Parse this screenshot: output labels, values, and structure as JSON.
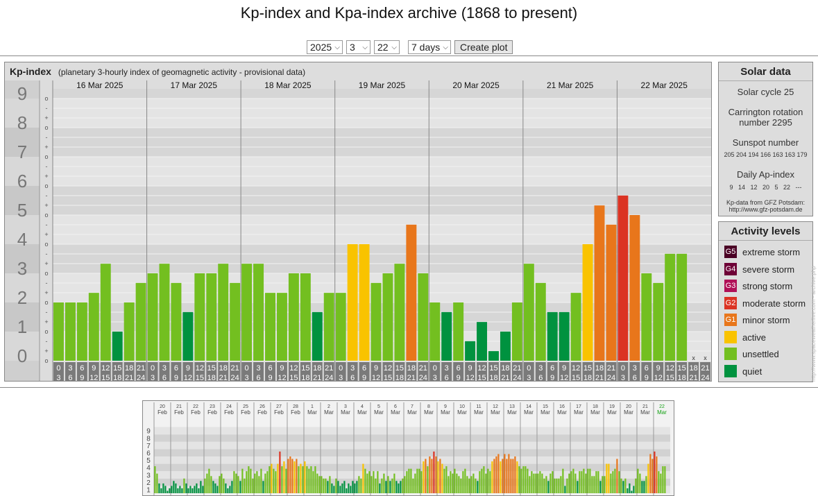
{
  "page_title": "Kp-index and Kpa-index archive (1868 to present)",
  "controls": {
    "year": "2025",
    "month": "3",
    "day": "22",
    "range": "7 days",
    "create_label": "Create plot"
  },
  "panel": {
    "name": "Kp-index",
    "subtitle": "(planetary 3-hourly index of geomagnetic activity - provisional data)"
  },
  "chart_data": {
    "type": "bar",
    "y_levels": [
      "0",
      "1",
      "2",
      "3",
      "4",
      "5",
      "6",
      "7",
      "8",
      "9"
    ],
    "y_minor_labels": [
      "o",
      "+",
      "-"
    ],
    "ylim": [
      0,
      9
    ],
    "days": [
      "16 Mar 2025",
      "17 Mar 2025",
      "18 Mar 2025",
      "19 Mar 2025",
      "20 Mar 2025",
      "21 Mar 2025",
      "22 Mar 2025"
    ],
    "hour_top": [
      "0",
      "3",
      "6",
      "9",
      "12",
      "15",
      "18",
      "21"
    ],
    "hour_bottom": [
      "3",
      "6",
      "9",
      "12",
      "15",
      "18",
      "21",
      "24"
    ],
    "missing_marker": "x",
    "values": [
      [
        2,
        2,
        2,
        2.33,
        3.33,
        1,
        2,
        2.67
      ],
      [
        3,
        3.33,
        2.67,
        1.67,
        3,
        3,
        3.33,
        2.67
      ],
      [
        3.33,
        3.33,
        2.33,
        2.33,
        3,
        3,
        1.67,
        2.33
      ],
      [
        2.33,
        4,
        4,
        2.67,
        3,
        3.33,
        4.67,
        3
      ],
      [
        2,
        1.67,
        2,
        0.67,
        1.33,
        0.33,
        1,
        2
      ],
      [
        3.33,
        2.67,
        1.67,
        1.67,
        2.33,
        4,
        5.33,
        4.67
      ],
      [
        5.67,
        5,
        3,
        2.67,
        3.67,
        3.67,
        null,
        null
      ]
    ],
    "colors": {
      "quiet": "#00923f",
      "unsettled": "#73bf20",
      "active": "#f9c300",
      "minor": "#e8761b",
      "moderate": "#db3323",
      "strong": "#b01057",
      "severe": "#6e0036",
      "extreme": "#4a0024"
    }
  },
  "solar": {
    "heading": "Solar data",
    "cycle": "Solar cycle 25",
    "carrington_line1": "Carrington rotation",
    "carrington_line2": "number 2295",
    "sunspot_label": "Sunspot number",
    "sunspot_values": "205 204 194 166 163 163 179",
    "ap_label": "Daily Ap-index",
    "ap_values": "9   14   12   20   5   22   ---",
    "source_line1": "Kp-data from GFZ Potsdam:",
    "source_line2": "http://www.gfz-potsdam.de"
  },
  "activity": {
    "heading": "Activity levels",
    "levels": [
      {
        "code": "G5",
        "label": "extreme storm",
        "color": "#4a0024"
      },
      {
        "code": "G4",
        "label": "severe storm",
        "color": "#6e0036"
      },
      {
        "code": "G3",
        "label": "strong storm",
        "color": "#b01057"
      },
      {
        "code": "G2",
        "label": "moderate storm",
        "color": "#db3323"
      },
      {
        "code": "G1",
        "label": "minor storm",
        "color": "#e8761b"
      },
      {
        "code": "",
        "label": "active",
        "color": "#f9c300"
      },
      {
        "code": "",
        "label": "unsettled",
        "color": "#73bf20"
      },
      {
        "code": "",
        "label": "quiet",
        "color": "#00923f"
      }
    ]
  },
  "side_caption": "http://www.spaceweatherlive.com - archive.php",
  "overview": {
    "days": [
      {
        "d": "20",
        "m": "Feb"
      },
      {
        "d": "21",
        "m": "Feb"
      },
      {
        "d": "22",
        "m": "Feb"
      },
      {
        "d": "23",
        "m": "Feb"
      },
      {
        "d": "24",
        "m": "Feb"
      },
      {
        "d": "25",
        "m": "Feb"
      },
      {
        "d": "26",
        "m": "Feb"
      },
      {
        "d": "27",
        "m": "Feb"
      },
      {
        "d": "28",
        "m": "Feb"
      },
      {
        "d": "1",
        "m": "Mar"
      },
      {
        "d": "2",
        "m": "Mar"
      },
      {
        "d": "3",
        "m": "Mar"
      },
      {
        "d": "4",
        "m": "Mar"
      },
      {
        "d": "5",
        "m": "Mar"
      },
      {
        "d": "6",
        "m": "Mar"
      },
      {
        "d": "7",
        "m": "Mar"
      },
      {
        "d": "8",
        "m": "Mar"
      },
      {
        "d": "9",
        "m": "Mar"
      },
      {
        "d": "10",
        "m": "Mar"
      },
      {
        "d": "11",
        "m": "Mar"
      },
      {
        "d": "12",
        "m": "Mar"
      },
      {
        "d": "13",
        "m": "Mar"
      },
      {
        "d": "14",
        "m": "Mar"
      },
      {
        "d": "15",
        "m": "Mar"
      },
      {
        "d": "16",
        "m": "Mar"
      },
      {
        "d": "17",
        "m": "Mar"
      },
      {
        "d": "18",
        "m": "Mar"
      },
      {
        "d": "19",
        "m": "Mar"
      },
      {
        "d": "20",
        "m": "Mar"
      },
      {
        "d": "21",
        "m": "Mar"
      },
      {
        "d": "22",
        "m": "Mar"
      }
    ],
    "highlight_color": "#11a011",
    "y_levels": [
      "1",
      "2",
      "3",
      "4",
      "5",
      "6",
      "7",
      "8",
      "9"
    ],
    "values": [
      [
        3.67,
        2.67,
        1.33,
        0.67,
        1.33,
        1,
        0.33,
        0.67
      ],
      [
        1,
        1.67,
        1.33,
        0.67,
        1,
        0.67,
        2,
        1.33
      ],
      [
        0.67,
        1,
        0.67,
        1,
        1.33,
        0.67,
        1.67,
        1
      ],
      [
        2,
        2.67,
        3.33,
        2.33,
        1.67,
        1.33,
        1,
        2.33
      ],
      [
        2.67,
        2,
        1.33,
        0.67,
        1,
        1.67,
        3,
        2.67
      ],
      [
        2.33,
        1.67,
        3.33,
        2,
        3,
        3.67,
        3.33,
        2
      ],
      [
        2.67,
        3,
        2.33,
        3.33,
        1.67,
        2.67,
        3,
        3.67
      ],
      [
        4,
        3.33,
        3,
        4,
        5.67,
        3.67,
        4.33,
        3.33
      ],
      [
        4.67,
        5,
        4.67,
        4.33,
        4.67,
        3.67,
        4,
        3.67
      ],
      [
        4.33,
        3.67,
        3.33,
        3.67,
        3,
        3.67,
        2.67,
        2.33
      ],
      [
        2.33,
        2,
        2,
        1.67,
        2.33,
        1.33,
        1,
        2
      ],
      [
        1.67,
        1,
        1.33,
        1.67,
        0.67,
        1.33,
        1,
        1.67
      ],
      [
        1.33,
        1.67,
        2.33,
        2,
        4,
        3.33,
        2.67,
        3
      ],
      [
        2.33,
        3,
        2,
        3,
        1.33,
        2,
        2.67,
        1.67
      ],
      [
        2.33,
        1.67,
        2,
        2.67,
        1.67,
        1.33,
        1.67,
        2
      ],
      [
        2.33,
        3,
        3.33,
        3.33,
        2,
        2.67,
        3.33,
        3.33
      ],
      [
        3,
        4.33,
        4.67,
        3.67,
        5,
        4.67,
        5.67,
        5
      ],
      [
        4.33,
        4.67,
        4,
        3.33,
        3.67,
        2.33,
        3,
        2.67
      ],
      [
        3.33,
        2.67,
        2.33,
        2,
        3,
        3.33,
        2.33,
        2
      ],
      [
        2.33,
        2.67,
        2,
        1.67,
        3,
        3.33,
        3.67,
        2.67
      ],
      [
        3.33,
        3,
        4.33,
        4.67,
        5,
        5.33,
        4.33,
        4.67
      ],
      [
        5.33,
        4.67,
        5.33,
        4.67,
        4.67,
        5,
        4.33,
        3.67
      ],
      [
        3.33,
        3.67,
        3.67,
        3.33,
        2.33,
        3,
        2.67,
        2.67
      ],
      [
        2.67,
        3,
        2.67,
        2,
        2.33,
        1.67,
        2.67,
        3
      ],
      [
        2,
        2,
        2,
        2.33,
        3.33,
        1,
        2,
        2.67
      ],
      [
        3,
        3.33,
        2.67,
        1.67,
        3,
        3,
        3.33,
        2.67
      ],
      [
        3.33,
        3.33,
        2.33,
        2.33,
        3,
        3,
        1.67,
        2.33
      ],
      [
        2.33,
        4,
        4,
        2.67,
        3,
        3.33,
        4.67,
        3
      ],
      [
        2,
        1.67,
        2,
        0.67,
        1.33,
        0.33,
        1,
        2
      ],
      [
        3.33,
        2.67,
        1.67,
        1.67,
        2.33,
        4,
        5.33,
        4.67
      ],
      [
        5.67,
        5,
        3,
        2.67,
        3.67,
        3.67,
        null,
        null
      ]
    ]
  }
}
